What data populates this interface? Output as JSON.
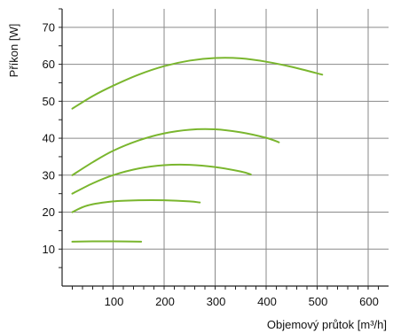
{
  "chart_data": {
    "type": "line",
    "title": "",
    "xlabel": "Objemový průtok [m³/h]",
    "ylabel": "Příkon [W]",
    "xlim": [
      0,
      640
    ],
    "ylim": [
      0,
      75
    ],
    "x_ticks": [
      100,
      200,
      300,
      400,
      500,
      600
    ],
    "x_tick_labels": [
      "100",
      "200",
      "300",
      "400",
      "500",
      "600"
    ],
    "y_ticks": [
      10,
      20,
      30,
      40,
      50,
      60,
      70
    ],
    "y_tick_labels": [
      "10",
      "20",
      "30",
      "40",
      "50",
      "60",
      "70"
    ],
    "grid": true,
    "line_color": "#7ab62e",
    "series": [
      {
        "x": [
          20,
          60,
          100,
          150,
          200,
          250,
          300,
          350,
          400,
          450,
          510
        ],
        "y": [
          48,
          51.4,
          54.2,
          57.2,
          59.5,
          61,
          61.7,
          61.6,
          60.7,
          59.3,
          57.2
        ]
      },
      {
        "x": [
          20,
          60,
          100,
          150,
          200,
          250,
          300,
          350,
          400,
          425
        ],
        "y": [
          30,
          33.5,
          36.6,
          39.4,
          41.3,
          42.3,
          42.4,
          41.6,
          40.1,
          38.9
        ]
      },
      {
        "x": [
          20,
          60,
          100,
          150,
          200,
          250,
          300,
          350,
          370
        ],
        "y": [
          25,
          27.8,
          30,
          31.8,
          32.7,
          32.8,
          32.2,
          31,
          30.2
        ]
      },
      {
        "x": [
          20,
          50,
          100,
          150,
          200,
          250,
          270
        ],
        "y": [
          20,
          21.8,
          22.9,
          23.2,
          23.2,
          22.9,
          22.6
        ]
      },
      {
        "x": [
          20,
          60,
          100,
          155
        ],
        "y": [
          12,
          12.1,
          12.1,
          12
        ]
      }
    ]
  }
}
